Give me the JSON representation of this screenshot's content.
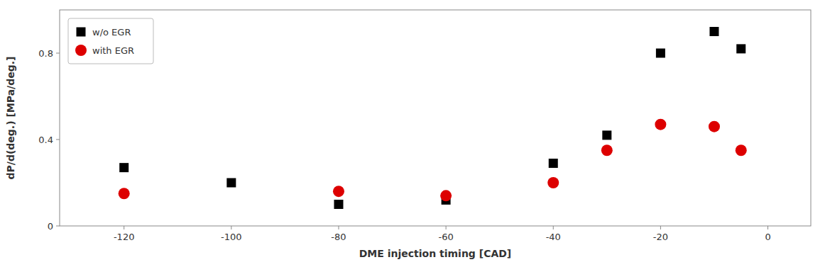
{
  "chart_data": {
    "type": "scatter",
    "xlabel": "DME injection timing [CAD]",
    "ylabel": "dP/d(deg.) [MPa/deg.]",
    "series": [
      {
        "name": "w/o EGR",
        "color": "#000000",
        "marker": "square",
        "x": [
          -120,
          -100,
          -80,
          -60,
          -40,
          -30,
          -20,
          -10,
          -5
        ],
        "values": [
          0.27,
          0.2,
          0.1,
          0.12,
          0.29,
          0.42,
          0.8,
          0.9,
          0.82
        ]
      },
      {
        "name": "with EGR",
        "color": "#dd0000",
        "marker": "circle",
        "x": [
          -120,
          -80,
          -60,
          -40,
          -30,
          -20,
          -10,
          -5
        ],
        "values": [
          0.15,
          0.16,
          0.14,
          0.2,
          0.35,
          0.47,
          0.46,
          0.35
        ]
      }
    ],
    "xlim": [
      -132,
      8
    ],
    "ylim": [
      0,
      1
    ],
    "xticks": [
      -120,
      -100,
      -80,
      -60,
      -40,
      -20,
      0
    ],
    "yticks": [
      0,
      0.4,
      0.8
    ],
    "legend": "upper-left"
  }
}
